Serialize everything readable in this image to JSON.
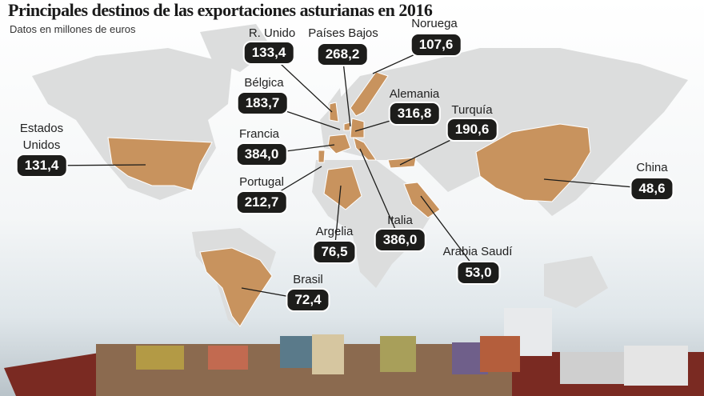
{
  "header": {
    "title": "Principales destinos de las exportaciones asturianas en 2016",
    "subtitle": "Datos en millones de euros"
  },
  "destinations": [
    {
      "name": "R. Unido",
      "value": "133,4"
    },
    {
      "name": "Países Bajos",
      "value": "268,2"
    },
    {
      "name": "Noruega",
      "value": "107,6"
    },
    {
      "name": "Bélgica",
      "value": "183,7"
    },
    {
      "name": "Alemania",
      "value": "316,8"
    },
    {
      "name": "Turquía",
      "value": "190,6"
    },
    {
      "name": "Francia",
      "value": "384,0"
    },
    {
      "name": "Portugal",
      "value": "212,7"
    },
    {
      "name": "Estados Unidos",
      "value": "131,4"
    },
    {
      "name": "China",
      "value": "48,6"
    },
    {
      "name": "Argelia",
      "value": "76,5"
    },
    {
      "name": "Italia",
      "value": "386,0"
    },
    {
      "name": "Arabia Saudí",
      "value": "53,0"
    },
    {
      "name": "Brasil",
      "value": "72,4"
    }
  ]
}
